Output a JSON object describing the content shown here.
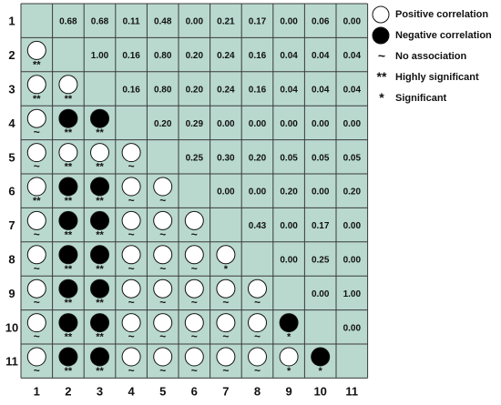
{
  "chart_data": {
    "type": "heatmap",
    "title": "",
    "xlabel": "",
    "ylabel": "",
    "labels": [
      "1",
      "2",
      "3",
      "4",
      "5",
      "6",
      "7",
      "8",
      "9",
      "10",
      "11"
    ],
    "upper_values": [
      [
        "",
        "0.68",
        "0.68",
        "0.11",
        "0.48",
        "0.00",
        "0.21",
        "0.17",
        "0.00",
        "0.06",
        "0.00"
      ],
      [
        "",
        "",
        "1.00",
        "0.16",
        "0.80",
        "0.20",
        "0.24",
        "0.16",
        "0.04",
        "0.04",
        "0.04"
      ],
      [
        "",
        "",
        "",
        "0.16",
        "0.80",
        "0.20",
        "0.24",
        "0.16",
        "0.04",
        "0.04",
        "0.04"
      ],
      [
        "",
        "",
        "",
        "",
        "0.20",
        "0.29",
        "0.00",
        "0.00",
        "0.00",
        "0.00",
        "0.00"
      ],
      [
        "",
        "",
        "",
        "",
        "",
        "0.25",
        "0.30",
        "0.20",
        "0.05",
        "0.05",
        "0.05"
      ],
      [
        "",
        "",
        "",
        "",
        "",
        "",
        "0.00",
        "0.00",
        "0.20",
        "0.00",
        "0.20"
      ],
      [
        "",
        "",
        "",
        "",
        "",
        "",
        "",
        "0.43",
        "0.00",
        "0.17",
        "0.00"
      ],
      [
        "",
        "",
        "",
        "",
        "",
        "",
        "",
        "",
        "0.00",
        "0.25",
        "0.00"
      ],
      [
        "",
        "",
        "",
        "",
        "",
        "",
        "",
        "",
        "",
        "0.00",
        "1.00"
      ],
      [
        "",
        "",
        "",
        "",
        "",
        "",
        "",
        "",
        "",
        "",
        "0.00"
      ],
      [
        "",
        "",
        "",
        "",
        "",
        "",
        "",
        "",
        "",
        "",
        ""
      ]
    ],
    "lower_cells": [
      [],
      [
        [
          "pos",
          "**"
        ]
      ],
      [
        [
          "pos",
          "**"
        ],
        [
          "pos",
          "**"
        ]
      ],
      [
        [
          "pos",
          "~"
        ],
        [
          "neg",
          "**"
        ],
        [
          "neg",
          "**"
        ]
      ],
      [
        [
          "pos",
          "~"
        ],
        [
          "pos",
          "**"
        ],
        [
          "pos",
          "**"
        ],
        [
          "pos",
          "~"
        ]
      ],
      [
        [
          "pos",
          "**"
        ],
        [
          "neg",
          "**"
        ],
        [
          "neg",
          "**"
        ],
        [
          "pos",
          "~"
        ],
        [
          "pos",
          "~"
        ]
      ],
      [
        [
          "pos",
          "~"
        ],
        [
          "neg",
          "**"
        ],
        [
          "neg",
          "**"
        ],
        [
          "pos",
          "~"
        ],
        [
          "pos",
          "~"
        ],
        [
          "pos",
          "~"
        ]
      ],
      [
        [
          "pos",
          "~"
        ],
        [
          "neg",
          "**"
        ],
        [
          "neg",
          "**"
        ],
        [
          "pos",
          "~"
        ],
        [
          "pos",
          "~"
        ],
        [
          "pos",
          "~"
        ],
        [
          "pos",
          "*"
        ]
      ],
      [
        [
          "pos",
          "~"
        ],
        [
          "neg",
          "**"
        ],
        [
          "neg",
          "**"
        ],
        [
          "pos",
          "~"
        ],
        [
          "pos",
          "~"
        ],
        [
          "pos",
          "~"
        ],
        [
          "pos",
          "~"
        ],
        [
          "pos",
          "~"
        ]
      ],
      [
        [
          "pos",
          "~"
        ],
        [
          "neg",
          "**"
        ],
        [
          "neg",
          "**"
        ],
        [
          "pos",
          "~"
        ],
        [
          "pos",
          "~"
        ],
        [
          "pos",
          "~"
        ],
        [
          "pos",
          "~"
        ],
        [
          "pos",
          "~"
        ],
        [
          "neg",
          "*"
        ]
      ],
      [
        [
          "pos",
          "~"
        ],
        [
          "neg",
          "**"
        ],
        [
          "neg",
          "**"
        ],
        [
          "pos",
          "~"
        ],
        [
          "pos",
          "~"
        ],
        [
          "pos",
          "~"
        ],
        [
          "pos",
          "~"
        ],
        [
          "pos",
          "~"
        ],
        [
          "pos",
          "*"
        ],
        [
          "neg",
          "*"
        ]
      ]
    ],
    "legend_position": "right",
    "legend": [
      {
        "symbol": "open-circle",
        "label": "Positive correlation"
      },
      {
        "symbol": "filled-circle",
        "label": "Negative correlation"
      },
      {
        "symbol": "~",
        "label": "No association"
      },
      {
        "symbol": "**",
        "label": "Highly significant"
      },
      {
        "symbol": "*",
        "label": "Significant"
      }
    ],
    "colors": {
      "cell": "#b9d9cf",
      "grid": "#3a3a3a",
      "pos": "#ffffff",
      "neg": "#000000",
      "text": "#111111"
    }
  }
}
